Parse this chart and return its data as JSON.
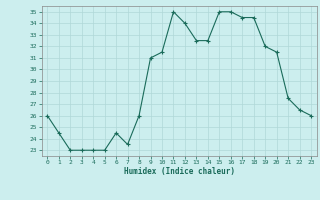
{
  "x": [
    0,
    1,
    2,
    3,
    4,
    5,
    6,
    7,
    8,
    9,
    10,
    11,
    12,
    13,
    14,
    15,
    16,
    17,
    18,
    19,
    20,
    21,
    22,
    23
  ],
  "y": [
    26,
    24.5,
    23,
    23,
    23,
    23,
    24.5,
    23.5,
    26,
    31,
    31.5,
    35,
    34,
    32.5,
    32.5,
    35,
    35,
    34.5,
    34.5,
    32,
    31.5,
    27.5,
    26.5,
    26
  ],
  "line_color": "#1a6b5a",
  "marker_color": "#1a6b5a",
  "bg_color": "#cceeee",
  "grid_color": "#b0d8d8",
  "xlabel": "Humidex (Indice chaleur)",
  "ylim": [
    22.5,
    35.5
  ],
  "xlim": [
    -0.5,
    23.5
  ],
  "yticks": [
    23,
    24,
    25,
    26,
    27,
    28,
    29,
    30,
    31,
    32,
    33,
    34,
    35
  ],
  "xticks": [
    0,
    1,
    2,
    3,
    4,
    5,
    6,
    7,
    8,
    9,
    10,
    11,
    12,
    13,
    14,
    15,
    16,
    17,
    18,
    19,
    20,
    21,
    22,
    23
  ]
}
